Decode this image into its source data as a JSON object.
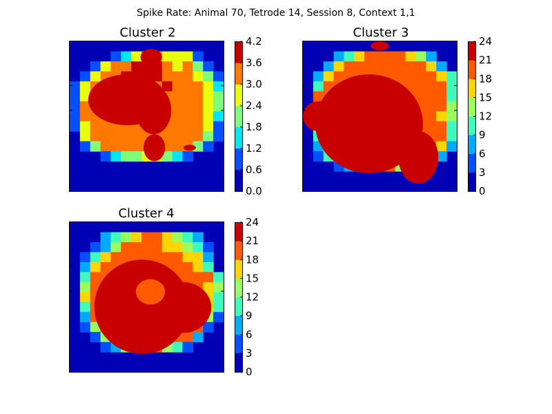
{
  "figure": {
    "suptitle": "Spike Rate: Animal 70, Tetrode 14, Session 8, Context 1,1"
  },
  "chart_data": [
    {
      "type": "heatmap",
      "title": "Cluster 2",
      "colorbar_ticks": [
        "0.0",
        "0.6",
        "1.2",
        "1.8",
        "2.4",
        "3.0",
        "3.6",
        "4.2"
      ],
      "level_colors": [
        "#0000b4",
        "#0050ff",
        "#00e4f8",
        "#7dff7a",
        "#eaff0c",
        "#ff7800",
        "#c80000"
      ],
      "grid_cols": 15,
      "levels": [
        "000000000000000",
        "000012455444100",
        "001455666545310",
        "014556666555431",
        "145566655655542",
        "145555555555543",
        "155555555555543",
        "155555555555542",
        "145555555555541",
        "045555555555531",
        "013555555555310",
        "000123344321000",
        "000000000000000",
        "000000000000000",
        "000000000000000"
      ],
      "peaks": [
        [
          0.12,
          0.22,
          0.63,
          0.56
        ],
        [
          0.43,
          0.3,
          0.66,
          0.62
        ],
        [
          0.48,
          0.62,
          0.62,
          0.8
        ],
        [
          0.74,
          0.69,
          0.82,
          0.73
        ],
        [
          0.46,
          0.05,
          0.6,
          0.16
        ]
      ]
    },
    {
      "type": "heatmap",
      "title": "Cluster 3",
      "colorbar_ticks": [
        "0",
        "3",
        "6",
        "9",
        "12",
        "15",
        "18",
        "21",
        "24"
      ],
      "level_colors": [
        "#0000b4",
        "#0050ff",
        "#00aaff",
        "#3ffaba",
        "#9aff5e",
        "#ffd500",
        "#ff5a00",
        "#c80000"
      ],
      "grid_cols": 15,
      "levels": [
        "000000000000000",
        "000235666654200",
        "002566666666520",
        "025666666666653",
        "036666666666663",
        "066666666666663",
        "066666666666664",
        "066666666666654",
        "046666666666663",
        "036666666666663",
        "025666666666652",
        "013566666666420",
        "000123466431000",
        "000000000000000",
        "000000000000000"
      ],
      "peaks": [
        [
          0.08,
          0.22,
          0.78,
          0.88
        ],
        [
          0.0,
          0.4,
          0.2,
          0.6
        ],
        [
          0.62,
          0.6,
          0.88,
          0.95
        ],
        [
          0.44,
          0.0,
          0.56,
          0.06
        ]
      ]
    },
    {
      "type": "heatmap",
      "title": "Cluster 4",
      "colorbar_ticks": [
        "0",
        "3",
        "6",
        "9",
        "12",
        "15",
        "18",
        "21",
        "24"
      ],
      "level_colors": [
        "#0000b4",
        "#0050ff",
        "#00aaff",
        "#3ffaba",
        "#9aff5e",
        "#ffd500",
        "#ff5a00",
        "#c80000"
      ],
      "grid_cols": 15,
      "levels": [
        "000000000000000",
        "000234566543200",
        "001246666554310",
        "013566666665520",
        "025666666666530",
        "036666666666663",
        "046666666666654",
        "056666666666653",
        "036666666666653",
        "026666666666641",
        "014666666666610",
        "001466666666200",
        "000124566431000",
        "000000000000000",
        "000000000000000"
      ],
      "peaks": [
        [
          0.16,
          0.25,
          0.78,
          0.88
        ],
        [
          0.55,
          0.4,
          0.92,
          0.74
        ]
      ],
      "holes": [
        [
          0.43,
          0.38,
          0.62,
          0.55
        ]
      ]
    }
  ]
}
